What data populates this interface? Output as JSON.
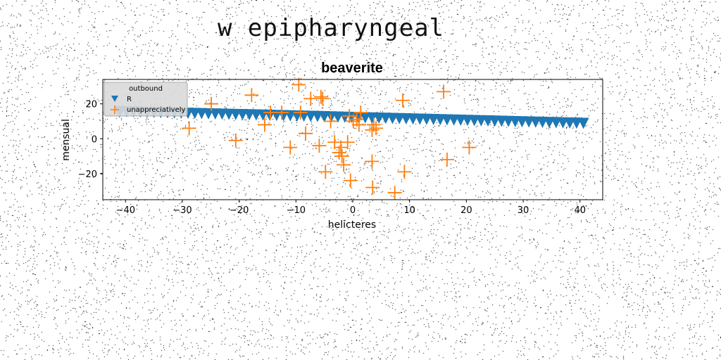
{
  "figure_title": "w epipharyngeal",
  "chart_data": {
    "type": "scatter",
    "title": "beaverite",
    "xlabel": "helicteres",
    "ylabel": "mensual",
    "xlim": [
      -44,
      44
    ],
    "ylim": [
      -35,
      34
    ],
    "xticks": [
      -40,
      -30,
      -20,
      -10,
      0,
      10,
      20,
      30,
      40
    ],
    "yticks": [
      -20,
      0,
      20
    ],
    "grid": false,
    "legend": {
      "title": "outbound",
      "placement": "top-left"
    },
    "series": [
      {
        "name": "R",
        "marker": "triangle-down",
        "color": "#1f77b4",
        "x": [
          -41,
          -39.8,
          -38.6,
          -37.4,
          -36.2,
          -35,
          -33.8,
          -32.6,
          -31.4,
          -30.2,
          -29,
          -27.8,
          -26.6,
          -25.4,
          -24.2,
          -23,
          -21.8,
          -20.6,
          -19.4,
          -18.2,
          -17,
          -15.8,
          -14.6,
          -13.4,
          -12.2,
          -11,
          -9.8,
          -8.6,
          -7.4,
          -6.2,
          -5,
          -3.8,
          -2.6,
          -1.4,
          -0.2,
          1,
          2.2,
          3.4,
          4.6,
          5.8,
          7,
          8.2,
          9.4,
          10.6,
          11.8,
          13,
          14.2,
          15.4,
          16.6,
          17.8,
          19,
          20.2,
          21.4,
          22.6,
          23.8,
          25,
          26.2,
          27.4,
          28.6,
          29.8,
          31,
          32.2,
          33.4,
          34.6,
          35.8,
          37,
          38.2,
          39.4,
          40.6
        ],
        "y": [
          15.6,
          15.5,
          15.4,
          15.3,
          15.2,
          15.1,
          15.0,
          14.9,
          14.8,
          14.7,
          14.6,
          14.5,
          14.4,
          14.3,
          14.2,
          14.1,
          14.0,
          13.9,
          13.8,
          13.7,
          13.6,
          13.5,
          13.4,
          13.3,
          13.2,
          13.1,
          13.0,
          12.9,
          12.8,
          12.7,
          12.6,
          12.5,
          12.4,
          12.3,
          12.2,
          12.1,
          12.0,
          11.9,
          11.8,
          11.7,
          11.6,
          11.5,
          11.4,
          11.3,
          11.2,
          11.1,
          11.0,
          10.9,
          10.8,
          10.7,
          10.6,
          10.5,
          10.4,
          10.3,
          10.2,
          10.1,
          10.0,
          9.9,
          9.8,
          9.7,
          9.6,
          9.5,
          9.4,
          9.3,
          9.2,
          9.1,
          9.0,
          8.9,
          8.8
        ]
      },
      {
        "name": "unappreciatively",
        "marker": "plus",
        "color": "#ff7f0e",
        "points": [
          [
            -28.8,
            6
          ],
          [
            -24.9,
            20
          ],
          [
            -20.6,
            -1
          ],
          [
            -17.8,
            25
          ],
          [
            -15.5,
            8
          ],
          [
            -14.5,
            15
          ],
          [
            -12.5,
            15
          ],
          [
            -11,
            -5
          ],
          [
            -9.5,
            31
          ],
          [
            -9.2,
            15
          ],
          [
            -8.3,
            3
          ],
          [
            -7.4,
            23
          ],
          [
            -5.9,
            -4
          ],
          [
            -5.6,
            24
          ],
          [
            -5.3,
            23
          ],
          [
            -4.8,
            -19
          ],
          [
            -3.9,
            10
          ],
          [
            -3.2,
            -2
          ],
          [
            -2.4,
            -8
          ],
          [
            -2.1,
            -5
          ],
          [
            -1.9,
            -10
          ],
          [
            -1.6,
            -15
          ],
          [
            -0.9,
            -2
          ],
          [
            -0.6,
            13
          ],
          [
            -0.4,
            -24
          ],
          [
            0.1,
            10
          ],
          [
            0.7,
            11
          ],
          [
            1.1,
            8
          ],
          [
            1.4,
            15
          ],
          [
            3.4,
            -13
          ],
          [
            3.5,
            -28
          ],
          [
            3.4,
            5
          ],
          [
            3.7,
            8
          ],
          [
            4.1,
            6
          ],
          [
            7.4,
            -31
          ],
          [
            8.8,
            22
          ],
          [
            9.1,
            -19
          ],
          [
            16,
            27
          ],
          [
            16.6,
            -12
          ],
          [
            20.5,
            -5
          ]
        ]
      }
    ]
  }
}
